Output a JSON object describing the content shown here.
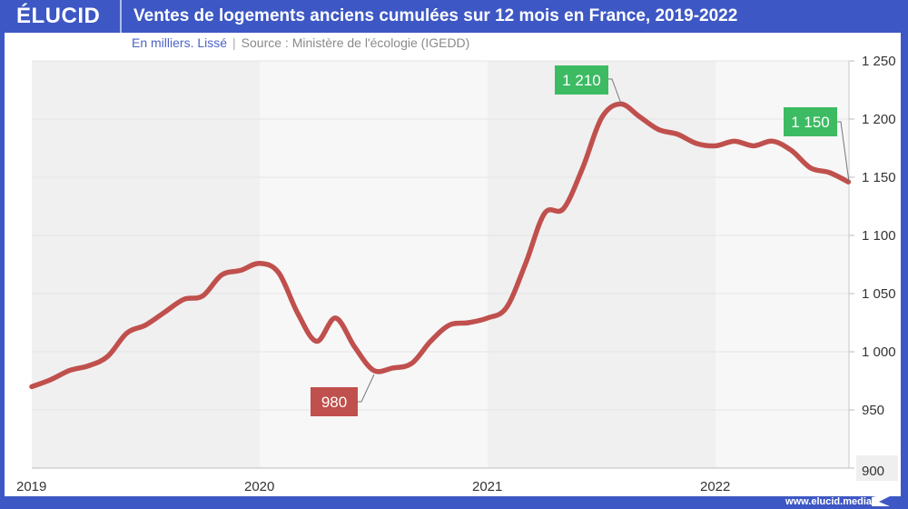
{
  "header": {
    "logo": "ÉLUCID",
    "title": "Ventes de logements anciens cumulées sur 12 mois en France, 2019-2022"
  },
  "subtitle": {
    "unit": "En milliers. Lissé",
    "separator": "|",
    "source": "Source : Ministère de l'écologie (IGEDD)"
  },
  "footer": {
    "url": "www.elucid.media"
  },
  "colors": {
    "brand": "#3d57c4",
    "line": "#c0504d",
    "label_high": "#3dbb63",
    "label_low": "#c0504d",
    "band_dark": "#f0f0f0",
    "band_light": "#f7f7f7"
  },
  "chart_data": {
    "type": "line",
    "title": "Ventes de logements anciens cumulées sur 12 mois en France, 2019-2022",
    "subtitle": "En milliers. Lissé | Source : Ministère de l'écologie (IGEDD)",
    "xlabel": "",
    "ylabel": "",
    "ylim": [
      900,
      1250
    ],
    "yticks": [
      900,
      950,
      1000,
      1050,
      1100,
      1150,
      1200,
      1250
    ],
    "ytick_labels": [
      "900",
      "950",
      "1 000",
      "1 050",
      "1 100",
      "1 150",
      "1 200",
      "1 250"
    ],
    "xticks": [
      2019,
      2020,
      2021,
      2022
    ],
    "xtick_labels": [
      "2019",
      "2020",
      "2021",
      "2022"
    ],
    "xlim": [
      2019,
      2022.6
    ],
    "grid": true,
    "series": [
      {
        "name": "Ventes cumulées 12 mois",
        "x": [
          2019.0,
          2019.083,
          2019.167,
          2019.25,
          2019.333,
          2019.417,
          2019.5,
          2019.583,
          2019.667,
          2019.75,
          2019.833,
          2019.917,
          2020.0,
          2020.083,
          2020.167,
          2020.25,
          2020.333,
          2020.417,
          2020.5,
          2020.583,
          2020.667,
          2020.75,
          2020.833,
          2020.917,
          2021.0,
          2021.083,
          2021.167,
          2021.25,
          2021.333,
          2021.417,
          2021.5,
          2021.583,
          2021.667,
          2021.75,
          2021.833,
          2021.917,
          2022.0,
          2022.083,
          2022.167,
          2022.25,
          2022.333,
          2022.417,
          2022.5,
          2022.583
        ],
        "values": [
          970,
          976,
          984,
          988,
          996,
          1016,
          1023,
          1034,
          1045,
          1048,
          1066,
          1070,
          1076,
          1068,
          1033,
          1009,
          1029,
          1004,
          984,
          986,
          990,
          1009,
          1023,
          1025,
          1029,
          1038,
          1076,
          1119,
          1123,
          1158,
          1201,
          1213,
          1202,
          1191,
          1187,
          1179,
          1177,
          1181,
          1177,
          1181,
          1173,
          1158,
          1154,
          1146
        ]
      }
    ],
    "annotations": [
      {
        "label": "980",
        "x": 2020.5,
        "y": 980,
        "style": "low"
      },
      {
        "label": "1 210",
        "x": 2021.583,
        "y": 1210,
        "style": "high"
      },
      {
        "label": "1 150",
        "x": 2022.583,
        "y": 1150,
        "style": "high"
      }
    ]
  }
}
